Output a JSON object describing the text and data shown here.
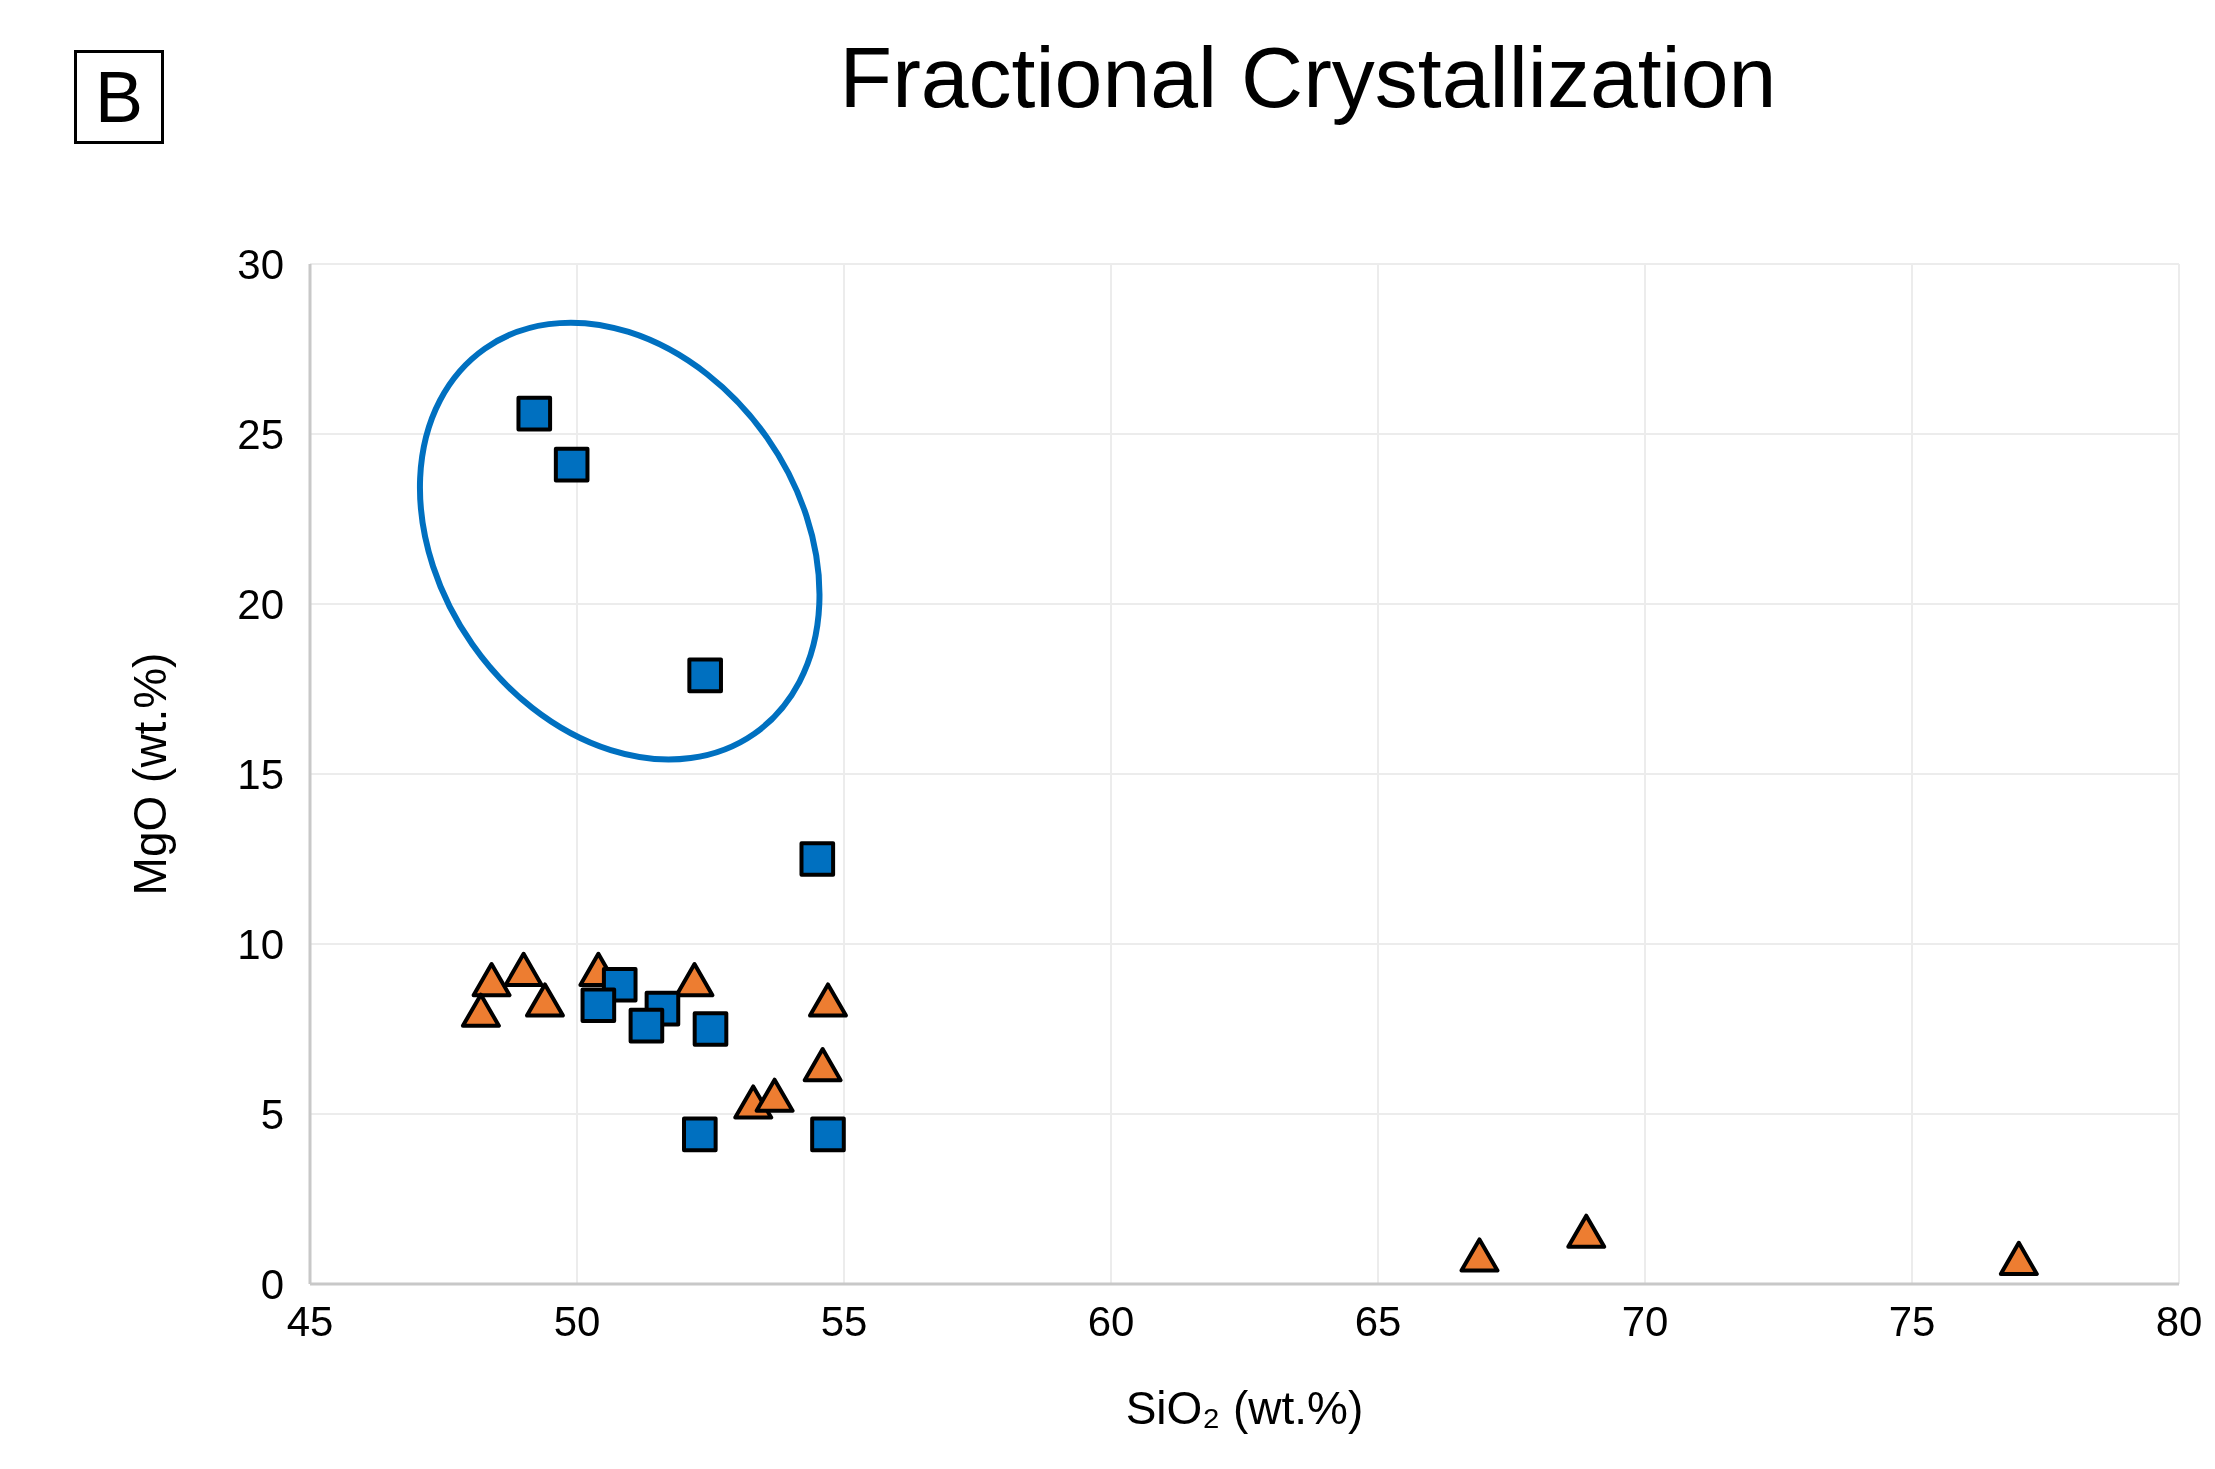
{
  "chart_data": {
    "type": "scatter",
    "title": "Fractional Crystallization",
    "xlabel": "SiO₂ (wt.%)",
    "ylabel": "MgO (wt.%)",
    "annotations": [
      "B"
    ],
    "xlim": [
      45,
      80
    ],
    "xticks": [
      45,
      50,
      55,
      60,
      65,
      70,
      75,
      80
    ],
    "ylim": [
      0,
      30
    ],
    "yticks": [
      0,
      5,
      10,
      15,
      20,
      25,
      30
    ],
    "grid": true,
    "series": [
      {
        "color": "#ed7d31",
        "marker": "triangle",
        "x": [
          48.4,
          48.2,
          49.0,
          49.4,
          50.4,
          52.2,
          54.7,
          54.6,
          53.3,
          53.7,
          66.9,
          68.9,
          77.0
        ],
        "values": [
          8.8,
          7.9,
          9.1,
          8.2,
          9.1,
          8.8,
          8.2,
          6.3,
          5.2,
          5.4,
          0.7,
          1.4,
          0.6
        ]
      },
      {
        "color": "#0070c0",
        "marker": "square",
        "x": [
          49.2,
          49.9,
          52.4,
          54.5,
          50.8,
          51.6,
          51.3,
          52.5,
          50.4,
          52.3,
          54.7
        ],
        "values": [
          25.6,
          24.1,
          17.9,
          12.5,
          8.8,
          8.1,
          7.6,
          7.5,
          8.2,
          4.4,
          4.4
        ]
      }
    ]
  }
}
